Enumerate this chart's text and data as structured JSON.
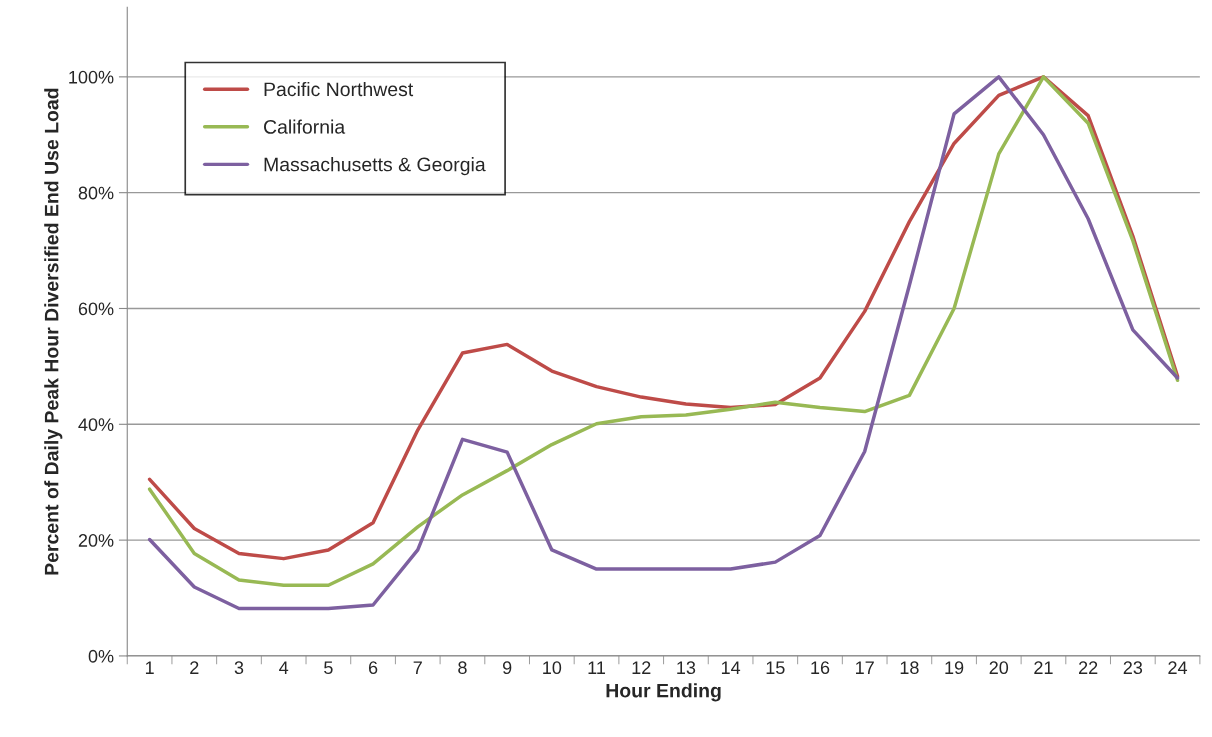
{
  "chart_data": {
    "type": "line",
    "xlabel": "Hour Ending",
    "ylabel": "Percent of Daily Peak Hour Diversified End Use Load",
    "categories": [
      "1",
      "2",
      "3",
      "4",
      "5",
      "6",
      "7",
      "8",
      "9",
      "10",
      "11",
      "12",
      "13",
      "14",
      "15",
      "16",
      "17",
      "18",
      "19",
      "20",
      "21",
      "22",
      "23",
      "24"
    ],
    "series": [
      {
        "name": "Pacific Northwest",
        "color": "#be4b48",
        "values": [
          30.5,
          22,
          17.7,
          16.8,
          18.3,
          23,
          39,
          52.3,
          53.8,
          49.2,
          46.5,
          44.7,
          43.5,
          42.9,
          43.4,
          48,
          59.5,
          75,
          88.5,
          96.8,
          100,
          93.3,
          72.5,
          48.3
        ]
      },
      {
        "name": "California",
        "color": "#98b954",
        "values": [
          28.8,
          17.7,
          13.1,
          12.2,
          12.2,
          15.9,
          22.3,
          27.8,
          32,
          36.5,
          40.1,
          41.3,
          41.6,
          42.6,
          43.8,
          42.9,
          42.2,
          45,
          60,
          86.7,
          100,
          92,
          71.7,
          47.6
        ]
      },
      {
        "name": "Massachusetts & Georgia",
        "color": "#7d60a0",
        "values": [
          20.1,
          11.9,
          8.2,
          8.2,
          8.2,
          8.8,
          18.3,
          37.4,
          35.2,
          18.3,
          15,
          15,
          15,
          15,
          16.2,
          20.8,
          35.3,
          64,
          93.6,
          100,
          90,
          75.5,
          56.3,
          48
        ]
      }
    ],
    "ylim": [
      0,
      112
    ],
    "yticks": [
      {
        "value": 0,
        "label": "0%"
      },
      {
        "value": 20,
        "label": "20%"
      },
      {
        "value": 40,
        "label": "40%"
      },
      {
        "value": 60,
        "label": "60%"
      },
      {
        "value": 80,
        "label": "80%"
      },
      {
        "value": 100,
        "label": "100%"
      }
    ],
    "grid": "y",
    "legend": "top left",
    "marker": "none",
    "line_style": "solid"
  }
}
